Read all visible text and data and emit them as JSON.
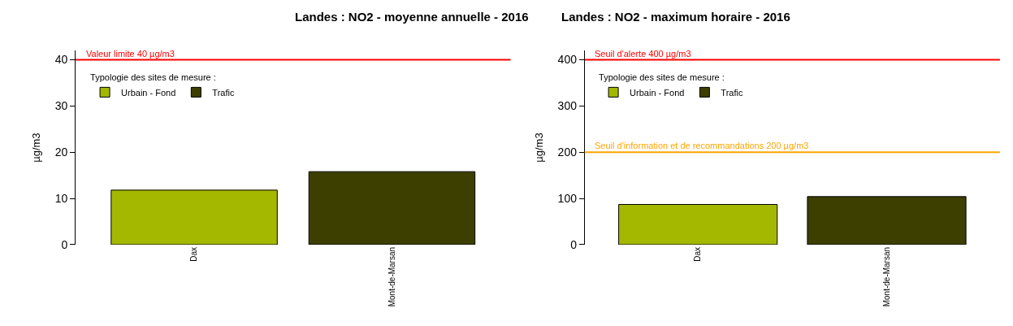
{
  "chart_data": [
    {
      "type": "bar",
      "title": "Landes : NO2 - moyenne annuelle - 2016",
      "ylabel": "µg/m3",
      "legend_title": "Typologie des sites de mesure :",
      "categories": [
        "Dax",
        "Mont-de-Marsan"
      ],
      "series": [
        {
          "name": "Urbain - Fond",
          "color": "#a4b800",
          "values": [
            11.8,
            null
          ]
        },
        {
          "name": "Trafic",
          "color": "#3c3f00",
          "values": [
            null,
            15.8
          ]
        }
      ],
      "ylim": [
        0,
        42
      ],
      "yticks": [
        0,
        10,
        20,
        30,
        40
      ],
      "legend": "top left",
      "ref_lines": [
        {
          "axis": "y",
          "value": 40,
          "label": "Valeur limite 40 µg/m3",
          "color": "#ff0000"
        }
      ]
    },
    {
      "type": "bar",
      "title": "Landes : NO2 - maximum horaire - 2016",
      "ylabel": "µg/m3",
      "legend_title": "Typologie des sites de mesure :",
      "categories": [
        "Dax",
        "Mont-de-Marsan"
      ],
      "series": [
        {
          "name": "Urbain - Fond",
          "color": "#a4b800",
          "values": [
            87,
            null
          ]
        },
        {
          "name": "Trafic",
          "color": "#3c3f00",
          "values": [
            null,
            104
          ]
        }
      ],
      "ylim": [
        0,
        420
      ],
      "yticks": [
        0,
        100,
        200,
        300,
        400
      ],
      "legend": "top left",
      "ref_lines": [
        {
          "axis": "y",
          "value": 400,
          "label": "Seuil d'alerte 400 µg/m3",
          "color": "#ff0000"
        },
        {
          "axis": "y",
          "value": 200,
          "label": "Seuil d'information et de recommandations 200 µg/m3",
          "color": "#ffa500"
        }
      ]
    }
  ]
}
